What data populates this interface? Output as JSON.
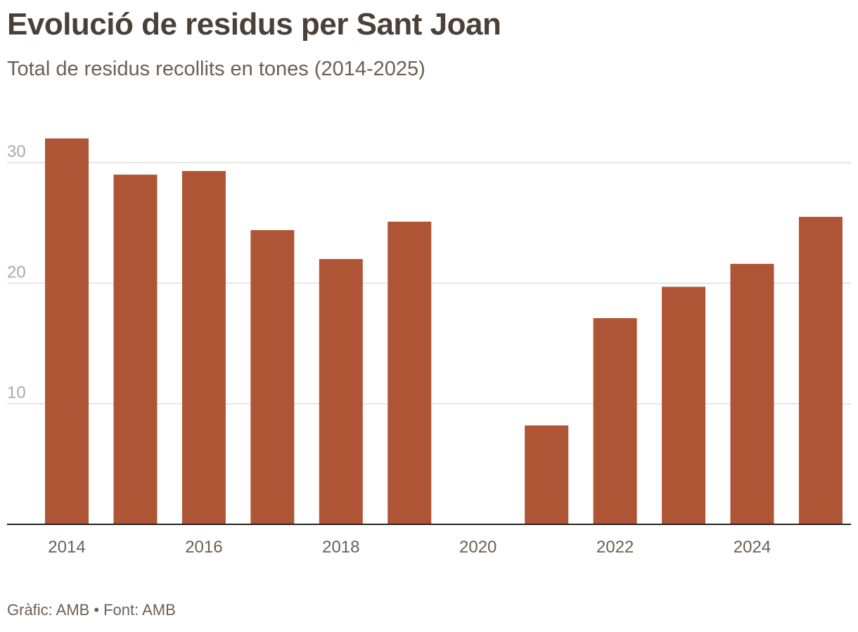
{
  "header": {
    "title": "Evolució de residus per Sant Joan",
    "subtitle": "Total de residus recollits en tones (2014-2025)"
  },
  "footer": {
    "grafic": "Gràfic: AMB",
    "separator": "•",
    "font": "Font: AMB"
  },
  "colors": {
    "bar": "#ae5536",
    "grid": "#dddddd",
    "axis": "#222222",
    "ytick": "#aaaaaa",
    "xtick": "#6b5f55"
  },
  "chart_data": {
    "type": "bar",
    "title": "Evolució de residus per Sant Joan",
    "subtitle": "Total de residus recollits en tones (2014-2025)",
    "xlabel": "",
    "ylabel": "",
    "categories": [
      "2014",
      "2015",
      "2016",
      "2017",
      "2018",
      "2019",
      "2020",
      "2021",
      "2022",
      "2023",
      "2024",
      "2025"
    ],
    "values": [
      32.0,
      29.0,
      29.3,
      24.4,
      22.0,
      25.1,
      0,
      8.2,
      17.1,
      19.7,
      21.6,
      25.5
    ],
    "ylim": [
      0,
      32.5
    ],
    "yticks": [
      10,
      20,
      30
    ],
    "xtick_labels": [
      "2014",
      "2016",
      "2018",
      "2020",
      "2022",
      "2024"
    ],
    "grid": true,
    "legend": "none"
  }
}
